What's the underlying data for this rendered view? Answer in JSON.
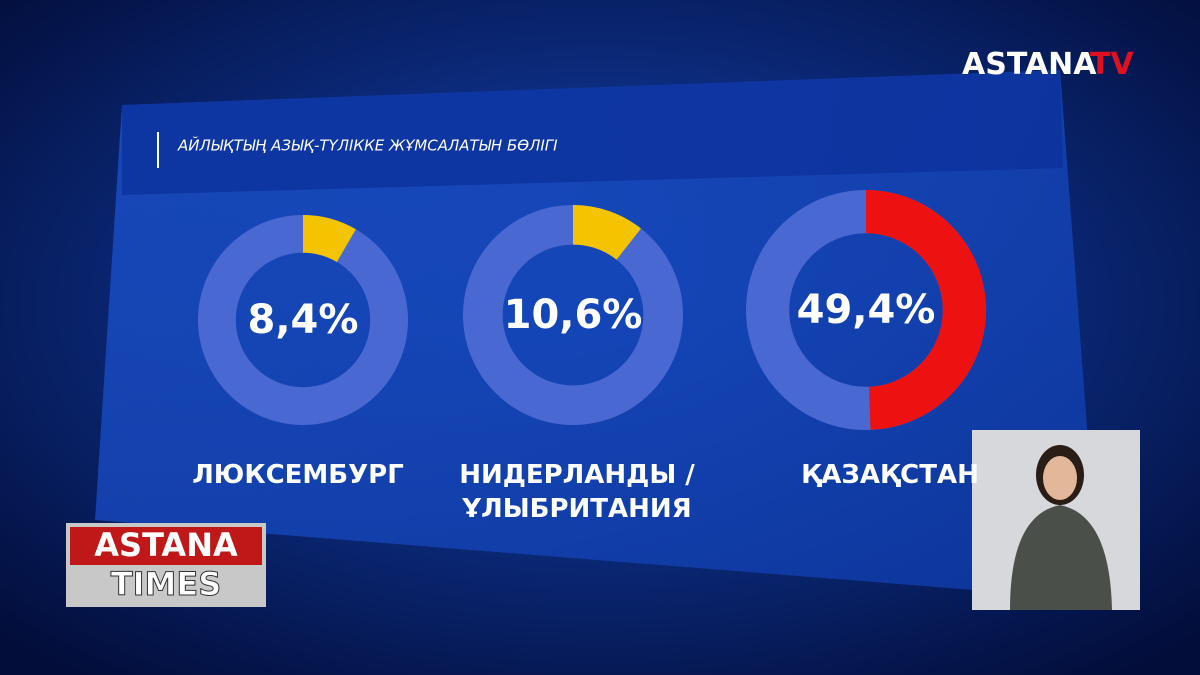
{
  "chart_data": {
    "type": "donut",
    "title": "АЙЛЫҚТЫҢ АЗЫҚ-ТҮЛІККЕ ЖҰМСАЛАТЫН БӨЛІГІ",
    "categories": [
      "ЛЮКСЕМБУРГ",
      "НИДЕРЛАНДЫ / ҰЛЫБРИТАНИЯ",
      "ҚАЗАҚСТАН"
    ],
    "values": [
      8.4,
      10.6,
      49.4
    ],
    "value_labels": [
      "8,4%",
      "10,6%",
      "49,4%"
    ],
    "colors": [
      "#f5c400",
      "#f5c400",
      "#ee1111"
    ],
    "track_color": "#4a68d2"
  },
  "logo": {
    "name": "ASTANA",
    "suffix": "TV"
  },
  "program": {
    "line1": "ASTANA",
    "line2": "TIMES"
  }
}
